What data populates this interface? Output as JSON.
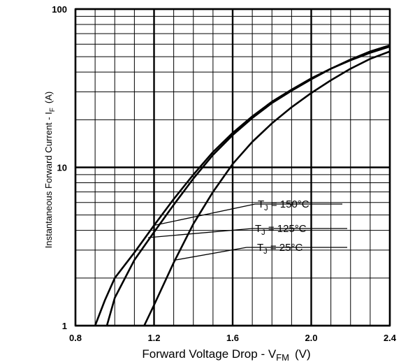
{
  "chart_data": {
    "type": "line",
    "xlabel": {
      "pre": "Forward Voltage Drop - V",
      "sub": "FM",
      "post": "(V)"
    },
    "ylabel": {
      "pre": "Instantaneous Forward Current - I",
      "sub": "F",
      "post": "(A)"
    },
    "xlim": [
      0.8,
      2.4
    ],
    "ylim": [
      1,
      100
    ],
    "yscale": "log",
    "grid": true,
    "x_ticks": [
      0.8,
      1.2,
      1.6,
      2.0,
      2.4
    ],
    "x_tick_labels": [
      "0.8",
      "1.2",
      "1.6",
      "2.0",
      "2.4"
    ],
    "y_tick_labels": [
      "1",
      "10",
      "100"
    ],
    "series": [
      {
        "name": "T_J = 150°C",
        "label": {
          "pre": "T",
          "sub": "J",
          "post": " = 150°C"
        },
        "x": [
          0.9,
          0.95,
          1.0,
          1.1,
          1.2,
          1.3,
          1.4,
          1.5,
          1.6,
          1.7,
          1.8,
          1.9,
          2.0,
          2.1,
          2.2,
          2.3,
          2.4
        ],
        "y": [
          1.0,
          1.45,
          2.0,
          2.9,
          4.3,
          6.3,
          9.0,
          12.5,
          16.5,
          21.0,
          26.0,
          31.0,
          36.5,
          42.0,
          47.5,
          53.0,
          58.0
        ]
      },
      {
        "name": "T_J = 125°C",
        "label": {
          "pre": "T",
          "sub": "J",
          "post": " = 125°C"
        },
        "x": [
          0.96,
          1.0,
          1.1,
          1.2,
          1.3,
          1.4,
          1.5,
          1.6,
          1.7,
          1.8,
          1.9,
          2.0,
          2.1,
          2.2,
          2.3,
          2.4
        ],
        "y": [
          1.0,
          1.5,
          2.6,
          3.9,
          5.8,
          8.5,
          12.0,
          16.0,
          20.5,
          25.5,
          30.5,
          36.0,
          42.0,
          48.0,
          54.0,
          59.0
        ]
      },
      {
        "name": "T_J = 25°C",
        "label": {
          "pre": "T",
          "sub": "J",
          "post": " =   25°C"
        },
        "x": [
          1.15,
          1.2,
          1.3,
          1.4,
          1.5,
          1.6,
          1.7,
          1.8,
          1.9,
          2.0,
          2.1,
          2.2,
          2.3,
          2.4
        ],
        "y": [
          1.0,
          1.35,
          2.5,
          4.4,
          7.0,
          10.5,
          14.5,
          19.0,
          24.0,
          29.5,
          35.5,
          42.0,
          48.5,
          54.0
        ]
      }
    ],
    "annotations": [
      {
        "series": 0,
        "x": 1.2,
        "y": 4.3
      },
      {
        "series": 1,
        "x": 1.17,
        "y": 3.6
      },
      {
        "series": 2,
        "x": 1.31,
        "y": 2.6
      }
    ],
    "colors": {
      "line": "#000000",
      "grid": "#000000",
      "background": "#ffffff"
    }
  }
}
